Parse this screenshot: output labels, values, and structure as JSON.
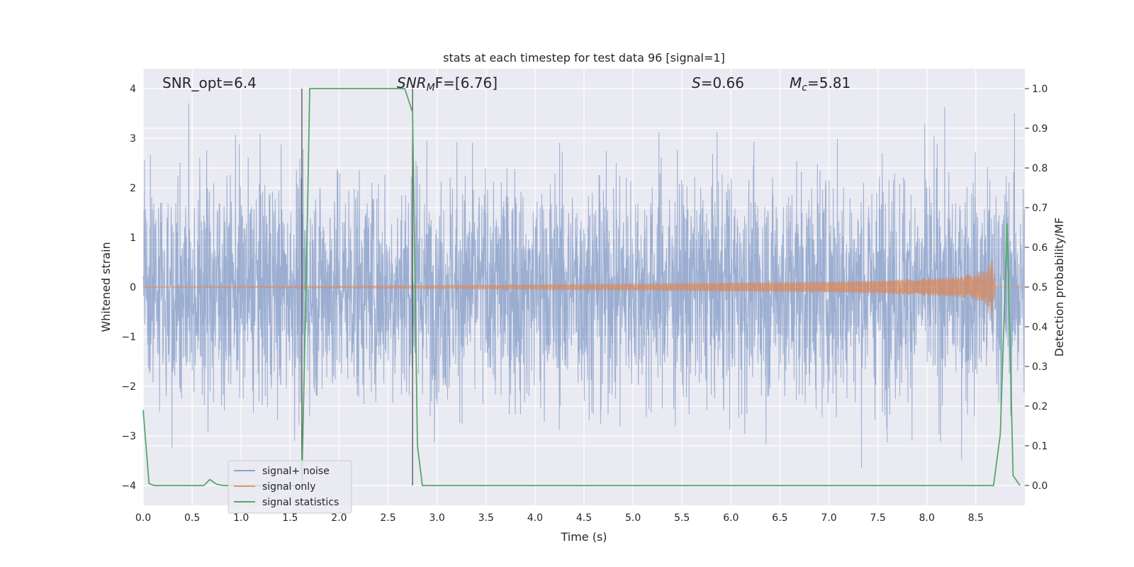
{
  "chart_data": {
    "type": "line",
    "title": "stats at each timestep for test data 96 [signal=1]",
    "xlabel": "Time (s)",
    "ylabel_left": "Whitened strain",
    "ylabel_right": "Detection probability/MF",
    "xlim": [
      0.0,
      9.0
    ],
    "ylim_left": [
      -4.4,
      4.4
    ],
    "ylim_right": [
      -0.05,
      1.05
    ],
    "x_ticks": [
      0.0,
      0.5,
      1.0,
      1.5,
      2.0,
      2.5,
      3.0,
      3.5,
      4.0,
      4.5,
      5.0,
      5.5,
      6.0,
      6.5,
      7.0,
      7.5,
      8.0,
      8.5
    ],
    "x_tick_labels": [
      "0.0",
      "0.5",
      "1.0",
      "1.5",
      "2.0",
      "2.5",
      "3.0",
      "3.5",
      "4.0",
      "4.5",
      "5.0",
      "5.5",
      "6.0",
      "6.5",
      "7.0",
      "7.5",
      "8.0",
      "8.5"
    ],
    "y_left_ticks": [
      -4,
      -3,
      -2,
      -1,
      0,
      1,
      2,
      3,
      4
    ],
    "y_left_tick_labels": [
      "−4",
      "−3",
      "−2",
      "−1",
      "0",
      "1",
      "2",
      "3",
      "4"
    ],
    "y_right_ticks": [
      0.0,
      0.1,
      0.2,
      0.3,
      0.4,
      0.5,
      0.6,
      0.7,
      0.8,
      0.9,
      1.0
    ],
    "y_right_tick_labels": [
      "0.0",
      "0.1",
      "0.2",
      "0.3",
      "0.4",
      "0.5",
      "0.6",
      "0.7",
      "0.8",
      "0.9",
      "1.0"
    ],
    "grid": true,
    "legend_placement": "lower-left",
    "annotations": {
      "snr_opt": "SNR_opt=6.4",
      "snr_mf_main": "SNR",
      "snr_mf_sub": "M",
      "snr_mf_rest": "F=[6.76]",
      "s_var": "S",
      "s_rest": "=0.66",
      "mc_var": "M",
      "mc_sub": "c",
      "mc_rest": "=5.81"
    },
    "vertical_lines_x": [
      1.62,
      2.75
    ],
    "series": [
      {
        "name": "signal+ noise",
        "axis": "left",
        "color": "#4c72b0",
        "description_level": "noise-like whitened strain, amplitude mostly within ±2.5, peaks up to about ±4",
        "envelope_x": [
          0.0,
          1.0,
          2.0,
          3.0,
          4.0,
          5.0,
          6.0,
          7.0,
          8.0,
          9.0
        ],
        "envelope_typical": [
          2.2,
          2.2,
          2.2,
          2.2,
          2.2,
          2.2,
          2.2,
          2.2,
          2.2,
          2.2
        ]
      },
      {
        "name": "signal only",
        "axis": "left",
        "color": "#dd8452",
        "envelope_x": [
          0.0,
          2.0,
          3.0,
          4.0,
          5.0,
          6.0,
          7.0,
          7.5,
          8.0,
          8.3,
          8.5,
          8.6,
          8.65,
          8.67,
          8.7
        ],
        "envelope_amp": [
          0.01,
          0.02,
          0.03,
          0.05,
          0.07,
          0.09,
          0.11,
          0.13,
          0.17,
          0.2,
          0.26,
          0.34,
          0.5,
          0.7,
          0.0
        ]
      },
      {
        "name": "signal statistics",
        "axis": "right",
        "color": "#55a868",
        "x": [
          0.0,
          0.06,
          0.11,
          0.5,
          0.62,
          0.68,
          0.75,
          0.82,
          1.0,
          1.4,
          1.61,
          1.62,
          1.68,
          1.7,
          2.5,
          2.67,
          2.75,
          2.77,
          2.8,
          2.85,
          3.0,
          4.0,
          5.0,
          6.0,
          7.0,
          8.0,
          8.68,
          8.75,
          8.82,
          8.88,
          8.95
        ],
        "y": [
          0.19,
          0.005,
          0.0,
          0.0,
          0.0,
          0.015,
          0.003,
          0.0,
          0.0,
          0.0,
          0.0,
          0.0,
          0.72,
          1.0,
          1.0,
          1.0,
          0.94,
          0.6,
          0.1,
          0.0,
          0.0,
          0.0,
          0.0,
          0.0,
          0.0,
          0.0,
          0.0,
          0.13,
          0.66,
          0.025,
          0.0
        ]
      }
    ]
  }
}
